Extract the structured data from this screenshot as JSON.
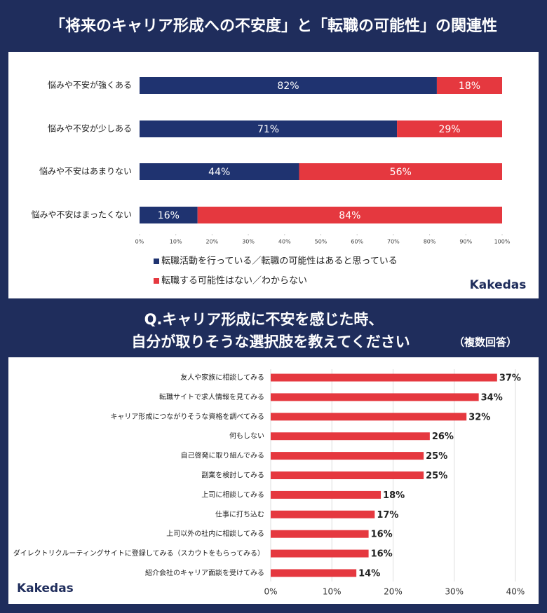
{
  "chart_data": [
    {
      "type": "stacked-bar",
      "title": "「将来のキャリア形成への不安度」と「転職の可能性」の関連性",
      "categories": [
        "悩みや不安が強くある",
        "悩みや不安が少しある",
        "悩みや不安はあまりない",
        "悩みや不安はまったくない"
      ],
      "series": [
        {
          "name": "転職活動を行っている／転職の可能性はあると思っている",
          "color": "#1f3370",
          "values": [
            82,
            71,
            44,
            16
          ],
          "value_labels": [
            "82%",
            "71%",
            "44%",
            "16%"
          ]
        },
        {
          "name": "転職する可能性はない／わからない",
          "color": "#e5383f",
          "values": [
            18,
            29,
            56,
            84
          ],
          "value_labels": [
            "18%",
            "29%",
            "56%",
            "84%"
          ]
        }
      ],
      "xlim": [
        0,
        100
      ],
      "xticks": [
        {
          "value": 0,
          "label": "0%"
        },
        {
          "value": 10,
          "label": "10%"
        },
        {
          "value": 20,
          "label": "20%"
        },
        {
          "value": 30,
          "label": "30%"
        },
        {
          "value": 40,
          "label": "40%"
        },
        {
          "value": 50,
          "label": "50%"
        },
        {
          "value": 60,
          "label": "60%"
        },
        {
          "value": 70,
          "label": "70%"
        },
        {
          "value": 80,
          "label": "80%"
        },
        {
          "value": 90,
          "label": "90%"
        },
        {
          "value": 100,
          "label": "100%"
        }
      ],
      "brand": "Kakedas"
    },
    {
      "type": "bar",
      "title": [
        "Q.キャリア形成に不安を感じた時、",
        "自分が取りそうな選択肢を教えてください"
      ],
      "note": "（複数回答）",
      "categories": [
        "友人や家族に相談してみる",
        "転職サイトで求人情報を見てみる",
        "キャリア形成につながりそうな資格を調べてみる",
        "何もしない",
        "自己啓発に取り組んでみる",
        "副業を検討してみる",
        "上司に相談してみる",
        "仕事に打ち込む",
        "上司以外の社内に相談してみる",
        "ダイレクトリクルーティングサイトに登録してみる（スカウトをもらってみる）",
        "紹介会社のキャリア面談を受けてみる"
      ],
      "values": [
        37,
        34,
        32,
        26,
        25,
        25,
        18,
        17,
        16,
        16,
        14
      ],
      "value_labels": [
        "37%",
        "34%",
        "32%",
        "26%",
        "25%",
        "25%",
        "18%",
        "17%",
        "16%",
        "16%",
        "14%"
      ],
      "color": "#e5383f",
      "xlim": [
        0,
        40
      ],
      "xticks": [
        {
          "value": 0,
          "label": "0%"
        },
        {
          "value": 10,
          "label": "10%"
        },
        {
          "value": 20,
          "label": "20%"
        },
        {
          "value": 30,
          "label": "30%"
        },
        {
          "value": 40,
          "label": "40%"
        }
      ],
      "grid": true,
      "brand": "Kakedas"
    }
  ]
}
